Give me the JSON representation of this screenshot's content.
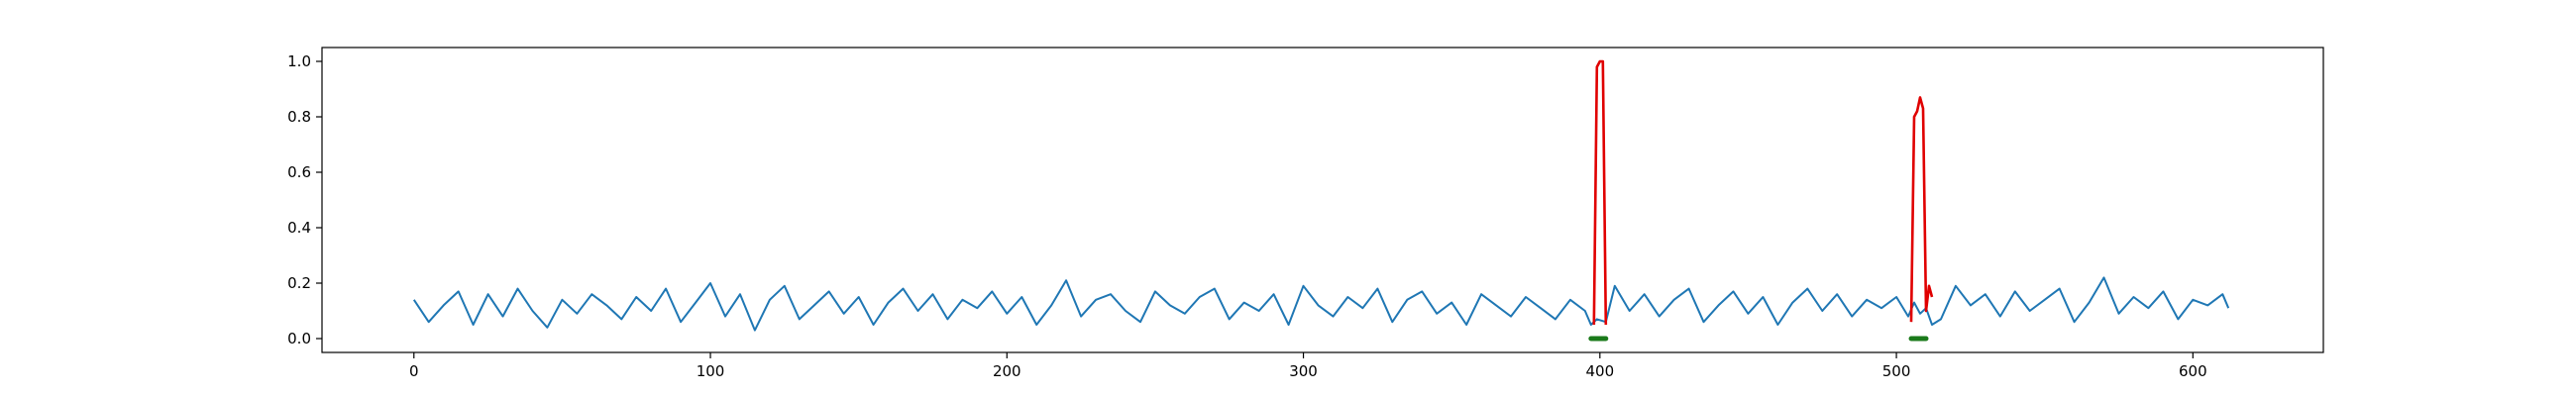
{
  "chart_data": {
    "type": "line",
    "title": "",
    "xlabel": "",
    "ylabel": "",
    "xlim": [
      -31,
      644
    ],
    "ylim": [
      -0.05,
      1.05
    ],
    "grid": false,
    "x_ticks": [
      0,
      100,
      200,
      300,
      400,
      500,
      600
    ],
    "y_ticks": [
      0.0,
      0.2,
      0.4,
      0.6,
      0.8,
      1.0
    ],
    "x_tick_labels": [
      "0",
      "100",
      "200",
      "300",
      "400",
      "500",
      "600"
    ],
    "y_tick_labels": [
      "0.0",
      "0.2",
      "0.4",
      "0.6",
      "0.8",
      "1.0"
    ],
    "colors": {
      "signal": "#1f77b4",
      "anomaly": "#e00000",
      "marker": "#1a7a1a"
    },
    "series": [
      {
        "style": "base",
        "x": [
          0,
          5,
          10,
          15,
          20,
          25,
          30,
          35,
          40,
          45,
          50,
          55,
          60,
          65,
          70,
          75,
          80,
          85,
          90,
          95,
          100,
          105,
          110,
          115,
          120,
          125,
          130,
          135,
          140,
          145,
          150,
          155,
          160,
          165,
          170,
          175,
          180,
          185,
          190,
          195,
          200,
          205,
          210,
          215,
          220,
          225,
          230,
          235,
          240,
          245,
          250,
          255,
          260,
          265,
          270,
          275,
          280,
          285,
          290,
          295,
          300,
          305,
          310,
          315,
          320,
          325,
          330,
          335,
          340,
          345,
          350,
          355,
          360,
          365,
          370,
          375,
          380,
          385,
          390,
          395,
          397,
          399,
          402,
          405,
          410,
          415,
          420,
          425,
          430,
          435,
          440,
          445,
          450,
          455,
          460,
          465,
          470,
          475,
          480,
          485,
          490,
          495,
          500,
          504,
          506,
          508,
          510,
          512,
          515,
          520,
          525,
          530,
          535,
          540,
          545,
          550,
          555,
          560,
          565,
          570,
          575,
          580,
          585,
          590,
          595,
          600,
          605,
          610,
          612
        ],
        "y": [
          0.14,
          0.06,
          0.12,
          0.17,
          0.05,
          0.16,
          0.08,
          0.18,
          0.1,
          0.04,
          0.14,
          0.09,
          0.16,
          0.12,
          0.07,
          0.15,
          0.1,
          0.18,
          0.06,
          0.13,
          0.2,
          0.08,
          0.16,
          0.03,
          0.14,
          0.19,
          0.07,
          0.12,
          0.17,
          0.09,
          0.15,
          0.05,
          0.13,
          0.18,
          0.1,
          0.16,
          0.07,
          0.14,
          0.11,
          0.17,
          0.09,
          0.15,
          0.05,
          0.12,
          0.21,
          0.08,
          0.14,
          0.16,
          0.1,
          0.06,
          0.17,
          0.12,
          0.09,
          0.15,
          0.18,
          0.07,
          0.13,
          0.1,
          0.16,
          0.05,
          0.19,
          0.12,
          0.08,
          0.15,
          0.11,
          0.18,
          0.06,
          0.14,
          0.17,
          0.09,
          0.13,
          0.05,
          0.16,
          0.12,
          0.08,
          0.15,
          0.11,
          0.07,
          0.14,
          0.1,
          0.05,
          0.07,
          0.06,
          0.19,
          0.1,
          0.16,
          0.08,
          0.14,
          0.18,
          0.06,
          0.12,
          0.17,
          0.09,
          0.15,
          0.05,
          0.13,
          0.18,
          0.1,
          0.16,
          0.08,
          0.14,
          0.11,
          0.15,
          0.08,
          0.13,
          0.09,
          0.11,
          0.05,
          0.07,
          0.19,
          0.12,
          0.16,
          0.08,
          0.17,
          0.1,
          0.14,
          0.18,
          0.06,
          0.13,
          0.22,
          0.09,
          0.15,
          0.11,
          0.17,
          0.07,
          0.14,
          0.12,
          0.16,
          0.11
        ]
      },
      {
        "style": "highlight",
        "x": [
          398,
          399,
          400,
          401,
          402
        ],
        "y": [
          0.05,
          0.98,
          1.0,
          1.0,
          0.05
        ]
      },
      {
        "style": "highlight",
        "x": [
          505,
          506,
          507,
          508,
          509,
          510,
          511,
          512
        ],
        "y": [
          0.06,
          0.8,
          0.82,
          0.87,
          0.83,
          0.1,
          0.19,
          0.15
        ]
      }
    ],
    "markers": [
      {
        "x_start": 397,
        "x_end": 402,
        "y": 0.0
      },
      {
        "x_start": 505,
        "x_end": 510,
        "y": 0.0
      }
    ]
  }
}
